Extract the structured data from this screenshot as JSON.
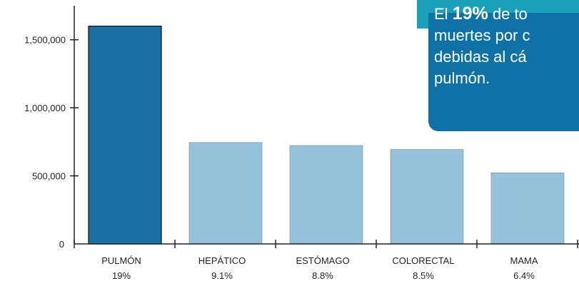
{
  "chart_data": {
    "type": "bar",
    "categories": [
      "PULMÓN",
      "HEPÁTICO",
      "ESTÓMAGO",
      "COLORECTAL",
      "MAMA"
    ],
    "sublabels": [
      "19%",
      "9.1%",
      "8.8%",
      "8.5%",
      "6.4%"
    ],
    "values": [
      1600000,
      745000,
      723000,
      694000,
      522000
    ],
    "highlight_index": 0,
    "ylim": [
      0,
      1750000
    ],
    "yticks": [
      0,
      500000,
      1000000,
      1500000
    ],
    "ytick_labels": [
      "0",
      "500,000",
      "1,000,000",
      "1,500,000"
    ],
    "colors": {
      "highlight": "#1a6fa3",
      "bar": "#95c1da",
      "axis": "#222222"
    }
  },
  "callout": {
    "prefix": "El",
    "percent": "19%",
    "line1_rest": "de to",
    "line2": "muertes por c",
    "line3": "debidas al cá",
    "line4": "pulmón."
  }
}
